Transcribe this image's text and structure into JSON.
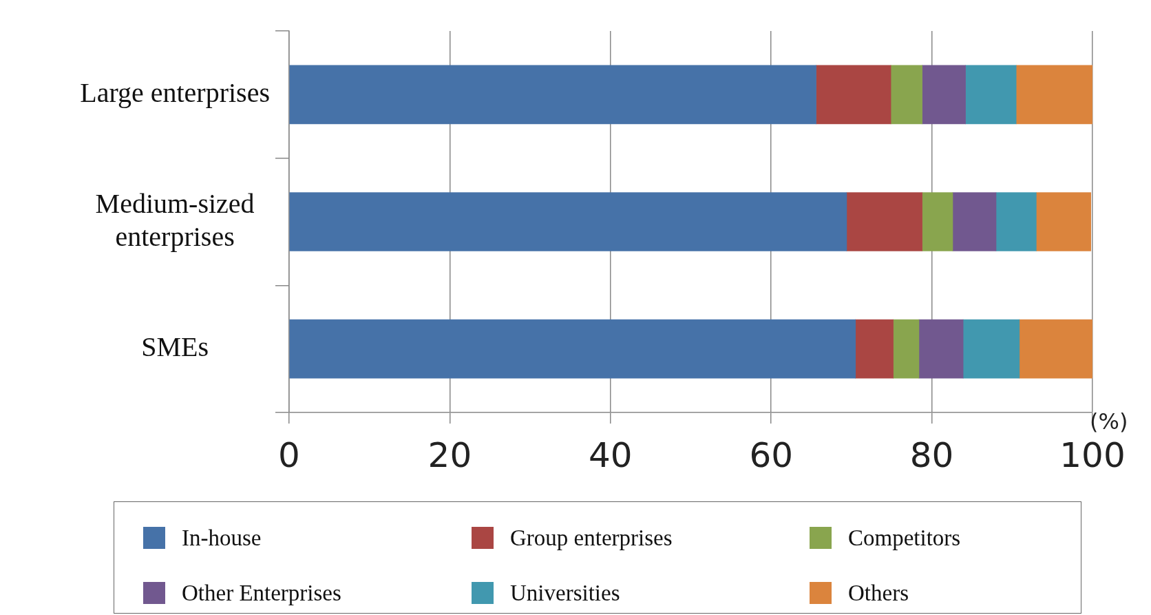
{
  "chart_data": {
    "type": "bar",
    "orientation": "horizontal",
    "stacked": true,
    "xlabel": "(%)",
    "categories": [
      "Large enterprises",
      "Medium-sized enterprises",
      "SMEs"
    ],
    "series": [
      {
        "name": "In-house",
        "color": "#4672a8",
        "values": [
          65.6,
          69.4,
          70.5
        ]
      },
      {
        "name": "Group enterprises",
        "color": "#aa4643",
        "values": [
          9.3,
          9.4,
          4.7
        ]
      },
      {
        "name": "Competitors",
        "color": "#89a54e",
        "values": [
          3.9,
          3.8,
          3.2
        ]
      },
      {
        "name": "Other Enterprises",
        "color": "#71588f",
        "values": [
          5.4,
          5.4,
          5.5
        ]
      },
      {
        "name": "Universities",
        "color": "#4198af",
        "values": [
          6.3,
          5.0,
          7.0
        ]
      },
      {
        "name": "Others",
        "color": "#db843d",
        "values": [
          9.5,
          6.8,
          9.1
        ]
      }
    ],
    "xlim": [
      0,
      100
    ],
    "xticks": [
      0,
      20,
      40,
      60,
      80,
      100
    ],
    "grid": "x",
    "legend": "bottom"
  }
}
